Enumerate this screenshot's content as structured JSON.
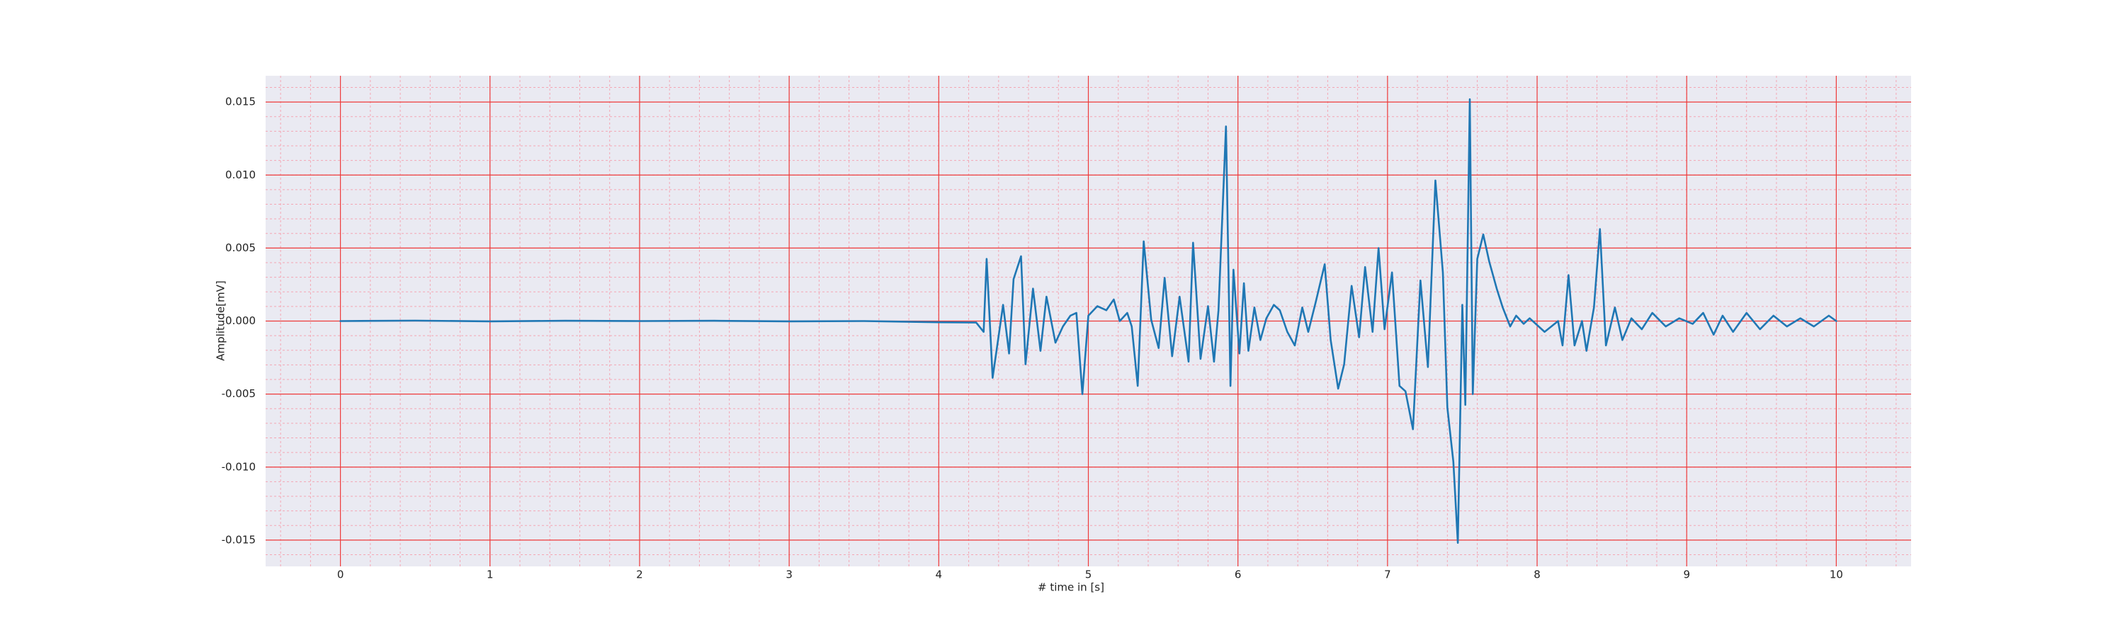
{
  "chart_data": {
    "type": "line",
    "x_label": "# time in [s]",
    "y_label": "Amplitude[mV]",
    "color": "#1f77b4",
    "grid": true,
    "minor_grid": true,
    "xlim": [
      -0.5,
      10.5
    ],
    "ylim": [
      -0.0168,
      0.0168
    ],
    "xticks": [
      0,
      1,
      2,
      3,
      4,
      5,
      6,
      7,
      8,
      9,
      10
    ],
    "yticks": [
      -0.015,
      {
        "value": -0.01,
        "label": "-0.010"
      },
      -0.005,
      {
        "value": 0,
        "label": "0.000"
      },
      0.005,
      {
        "value": 0.01,
        "label": "0.010"
      },
      0.015
    ],
    "x": [
      0,
      0.5,
      1,
      1.5,
      2,
      2.5,
      3,
      3.5,
      4,
      4.25,
      4.3,
      4.32,
      4.36,
      4.43,
      4.47,
      4.5,
      4.55,
      4.58,
      4.63,
      4.68,
      4.72,
      4.78,
      4.83,
      4.88,
      4.92,
      4.96,
      5.0,
      5.06,
      5.12,
      5.17,
      5.21,
      5.26,
      5.29,
      5.33,
      5.37,
      5.42,
      5.47,
      5.51,
      5.56,
      5.61,
      5.67,
      5.7,
      5.75,
      5.8,
      5.84,
      5.87,
      5.92,
      5.95,
      5.97,
      6.01,
      6.04,
      6.07,
      6.11,
      6.15,
      6.19,
      6.24,
      6.28,
      6.33,
      6.38,
      6.43,
      6.47,
      6.52,
      6.58,
      6.62,
      6.67,
      6.71,
      6.76,
      6.81,
      6.85,
      6.9,
      6.94,
      6.98,
      7.03,
      7.08,
      7.12,
      7.17,
      7.22,
      7.27,
      7.32,
      7.37,
      7.4,
      7.44,
      7.47,
      7.5,
      7.52,
      7.55,
      7.57,
      7.6,
      7.64,
      7.68,
      7.73,
      7.77,
      7.82,
      7.86,
      7.91,
      7.95,
      8.05,
      8.14,
      8.17,
      8.21,
      8.25,
      8.3,
      8.33,
      8.38,
      8.42,
      8.46,
      8.52,
      8.57,
      8.63,
      8.7,
      8.77,
      8.86,
      8.95,
      9.04,
      9.11,
      9.18,
      9.24,
      9.31,
      9.4,
      9.49,
      9.58,
      9.67,
      9.76,
      9.85,
      9.95,
      10.0
    ],
    "values": [
      0,
      3e-05,
      -2e-05,
      2e-05,
      0,
      2e-05,
      -2e-05,
      0,
      -8e-05,
      -0.0001,
      -0.00074,
      0.00426,
      -0.00389,
      0.00111,
      -0.00222,
      0.00287,
      0.00444,
      -0.00296,
      0.00222,
      -0.00204,
      0.00167,
      -0.00148,
      -0.00037,
      0.00037,
      0.00056,
      -0.005,
      0.00037,
      0.00102,
      0.00074,
      0.00148,
      0,
      0.00056,
      -0.00037,
      -0.00444,
      0.00546,
      9e-05,
      -0.00185,
      0.00296,
      -0.00241,
      0.00167,
      -0.00278,
      0.00537,
      -0.00259,
      0.00102,
      -0.00278,
      0.00074,
      0.01333,
      -0.00444,
      0.00352,
      -0.00222,
      0.00259,
      -0.00204,
      0.00093,
      -0.0013,
      0.00019,
      0.00111,
      0.00074,
      -0.00074,
      -0.00167,
      0.00093,
      -0.00074,
      0.0013,
      0.00389,
      -0.0013,
      -0.00463,
      -0.00296,
      0.00241,
      -0.00111,
      0.0037,
      -0.00074,
      0.005,
      -0.00056,
      0.00333,
      -0.00444,
      -0.00481,
      -0.00741,
      0.00278,
      -0.00315,
      0.00963,
      0.00333,
      -0.00593,
      -0.00963,
      -0.01519,
      0.00111,
      -0.00574,
      0.01519,
      -0.005,
      0.00426,
      0.00593,
      0.00407,
      0.00222,
      0.00093,
      -0.00037,
      0.00037,
      -0.00019,
      0.00019,
      -0.00074,
      0,
      -0.00167,
      0.00315,
      -0.00167,
      0,
      -0.00204,
      0.00093,
      0.0063,
      -0.00167,
      0.00093,
      -0.0013,
      0.00019,
      -0.00056,
      0.00056,
      -0.00037,
      0.00019,
      -0.00019,
      0.00056,
      -0.00093,
      0.00037,
      -0.00074,
      0.00056,
      -0.00056,
      0.00037,
      -0.00037,
      0.00019,
      -0.00037,
      0.00037,
      0
    ]
  }
}
